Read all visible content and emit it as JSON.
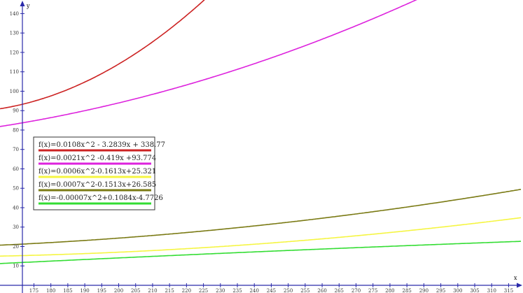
{
  "chart_data": {
    "type": "line",
    "xlabel": "x",
    "ylabel": "y",
    "xlim": [
      165,
      318
    ],
    "ylim": [
      0,
      147
    ],
    "x_ticks": [
      175,
      180,
      185,
      190,
      195,
      200,
      205,
      210,
      215,
      220,
      225,
      230,
      235,
      240,
      245,
      250,
      255,
      260,
      265,
      270,
      275,
      280,
      285,
      290,
      295,
      300,
      305,
      310,
      315
    ],
    "y_ticks": [
      10,
      20,
      30,
      40,
      50,
      60,
      70,
      80,
      90,
      100,
      110,
      120,
      130,
      140
    ],
    "grid": false,
    "legend_position": "middle-left",
    "series": [
      {
        "name": "f(x)=0.0108x^2 - 3.2839x + 338.77",
        "color": "#cc2222",
        "coefficients": [
          0.0108,
          -3.2839,
          338.77
        ]
      },
      {
        "name": "f(x)=0.0021x^2 -0.419x +93.774",
        "color": "#dd22dd",
        "coefficients": [
          0.0021,
          -0.419,
          93.774
        ]
      },
      {
        "name": "f(x)=0.0006x^2-0.1613x+25.321",
        "color": "#f5f542",
        "coefficients": [
          0.0006,
          -0.1613,
          25.321
        ]
      },
      {
        "name": "f(x)=0.0007x^2-0.1513x+26.585",
        "color": "#7a7a14",
        "coefficients": [
          0.0007,
          -0.1513,
          26.585
        ]
      },
      {
        "name": "f(x)=-0.00007x^2+0.1084x-4.7726",
        "color": "#33dd33",
        "coefficients": [
          -7e-05,
          0.1084,
          -4.7726
        ]
      }
    ]
  }
}
